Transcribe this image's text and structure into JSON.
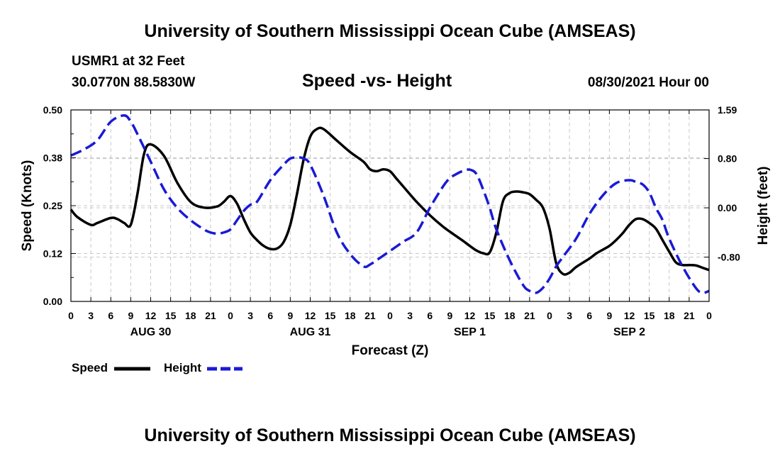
{
  "header": {
    "top_title": "University of Southern Mississippi Ocean Cube (AMSEAS)",
    "station": "USMR1 at 32 Feet",
    "coordinates": "30.0770N  88.5830W",
    "subtitle": "Speed -vs- Height",
    "datetime": "08/30/2021 Hour 00"
  },
  "footer": {
    "bottom_title": "University of Southern Mississippi Ocean Cube (AMSEAS)"
  },
  "legend": {
    "speed_label": "Speed",
    "height_label": "Height"
  },
  "colors": {
    "speed": "#000000",
    "height": "#1a1ad6",
    "grid": "#c8c8c8"
  },
  "chart_data": {
    "type": "line",
    "xlabel": "Forecast (Z)",
    "ylabel_left": "Speed (Knots)",
    "ylabel_right": "Height (feet)",
    "x_unit": "hours from 08/30/2021 00Z",
    "xlim": [
      0,
      96
    ],
    "ylim_left": [
      0.0,
      0.5
    ],
    "ylim_right": [
      -1.52,
      1.59
    ],
    "left_ticks": [
      {
        "value": 0.0,
        "label": "0.00"
      },
      {
        "value": 0.125,
        "label": "0.12"
      },
      {
        "value": 0.25,
        "label": "0.25"
      },
      {
        "value": 0.375,
        "label": "0.38"
      },
      {
        "value": 0.5,
        "label": "0.50"
      }
    ],
    "right_ticks": [
      {
        "value": -0.8,
        "label": "-0.80"
      },
      {
        "value": 0.0,
        "label": "0.00"
      },
      {
        "value": 0.8,
        "label": "0.80"
      },
      {
        "value": 1.59,
        "label": "1.59"
      }
    ],
    "x_ticks": [
      {
        "h": 0,
        "label": "0"
      },
      {
        "h": 3,
        "label": "3"
      },
      {
        "h": 6,
        "label": "6"
      },
      {
        "h": 9,
        "label": "9"
      },
      {
        "h": 12,
        "label": "12"
      },
      {
        "h": 15,
        "label": "15"
      },
      {
        "h": 18,
        "label": "18"
      },
      {
        "h": 21,
        "label": "21"
      },
      {
        "h": 24,
        "label": "0"
      },
      {
        "h": 27,
        "label": "3"
      },
      {
        "h": 30,
        "label": "6"
      },
      {
        "h": 33,
        "label": "9"
      },
      {
        "h": 36,
        "label": "12"
      },
      {
        "h": 39,
        "label": "15"
      },
      {
        "h": 42,
        "label": "18"
      },
      {
        "h": 45,
        "label": "21"
      },
      {
        "h": 48,
        "label": "0"
      },
      {
        "h": 51,
        "label": "3"
      },
      {
        "h": 54,
        "label": "6"
      },
      {
        "h": 57,
        "label": "9"
      },
      {
        "h": 60,
        "label": "12"
      },
      {
        "h": 63,
        "label": "15"
      },
      {
        "h": 66,
        "label": "18"
      },
      {
        "h": 69,
        "label": "21"
      },
      {
        "h": 72,
        "label": "0"
      },
      {
        "h": 75,
        "label": "3"
      },
      {
        "h": 78,
        "label": "6"
      },
      {
        "h": 81,
        "label": "9"
      },
      {
        "h": 84,
        "label": "12"
      },
      {
        "h": 87,
        "label": "15"
      },
      {
        "h": 90,
        "label": "18"
      },
      {
        "h": 93,
        "label": "21"
      },
      {
        "h": 96,
        "label": "0"
      }
    ],
    "date_labels": [
      {
        "h": 12,
        "label": "AUG 30"
      },
      {
        "h": 36,
        "label": "AUG 31"
      },
      {
        "h": 60,
        "label": "SEP 1"
      },
      {
        "h": 84,
        "label": "SEP 2"
      }
    ],
    "series": [
      {
        "name": "Speed",
        "axis": "left",
        "style": "solid",
        "x": [
          0,
          1,
          3,
          4,
          6,
          7,
          8,
          9,
          10,
          11,
          12,
          14,
          16,
          18,
          20,
          22,
          23,
          24,
          25,
          26,
          27,
          28,
          29,
          30,
          31,
          32,
          33,
          34,
          35,
          36,
          37,
          38,
          40,
          42,
          44,
          45,
          46,
          47,
          48,
          49,
          50,
          52,
          54,
          56,
          58,
          59,
          60,
          61,
          62,
          63,
          64,
          65,
          66,
          67,
          68,
          69,
          70,
          71,
          72,
          73,
          74,
          75,
          76,
          78,
          79,
          80,
          81,
          82,
          83,
          84,
          85,
          86,
          87,
          88,
          89,
          90,
          91,
          92,
          93,
          94,
          95,
          96
        ],
        "values": [
          0.24,
          0.22,
          0.2,
          0.205,
          0.218,
          0.215,
          0.205,
          0.2,
          0.28,
          0.385,
          0.41,
          0.38,
          0.31,
          0.26,
          0.245,
          0.248,
          0.26,
          0.275,
          0.255,
          0.215,
          0.18,
          0.16,
          0.145,
          0.137,
          0.138,
          0.155,
          0.2,
          0.28,
          0.37,
          0.43,
          0.45,
          0.45,
          0.42,
          0.39,
          0.365,
          0.345,
          0.34,
          0.345,
          0.34,
          0.32,
          0.3,
          0.26,
          0.225,
          0.195,
          0.17,
          0.158,
          0.145,
          0.133,
          0.126,
          0.128,
          0.18,
          0.262,
          0.283,
          0.287,
          0.285,
          0.28,
          0.265,
          0.245,
          0.19,
          0.1,
          0.072,
          0.075,
          0.09,
          0.112,
          0.125,
          0.135,
          0.145,
          0.16,
          0.178,
          0.2,
          0.215,
          0.215,
          0.205,
          0.19,
          0.16,
          0.13,
          0.102,
          0.095,
          0.095,
          0.094,
          0.088,
          0.082
        ]
      },
      {
        "name": "Height",
        "axis": "right",
        "style": "dashed",
        "x": [
          0,
          2,
          4,
          6,
          8,
          9,
          10,
          12,
          14,
          16,
          18,
          20,
          21,
          22,
          23,
          24,
          25,
          26,
          27,
          28,
          30,
          32,
          33,
          34,
          35,
          36,
          38,
          40,
          42,
          44,
          45,
          46,
          48,
          50,
          52,
          54,
          56,
          57,
          58,
          59,
          60,
          61,
          62,
          63,
          64,
          66,
          68,
          69,
          70,
          71,
          72,
          73,
          74,
          76,
          78,
          80,
          82,
          84,
          85,
          86,
          87,
          88,
          89,
          90,
          92,
          94,
          95,
          96
        ],
        "values": [
          0.85,
          0.95,
          1.1,
          1.4,
          1.5,
          1.4,
          1.2,
          0.75,
          0.3,
          0.0,
          -0.2,
          -0.35,
          -0.4,
          -0.42,
          -0.4,
          -0.35,
          -0.2,
          -0.05,
          0.05,
          0.1,
          0.45,
          0.7,
          0.8,
          0.82,
          0.8,
          0.7,
          0.2,
          -0.4,
          -0.75,
          -0.95,
          -0.92,
          -0.85,
          -0.7,
          -0.55,
          -0.4,
          0.0,
          0.35,
          0.48,
          0.55,
          0.6,
          0.62,
          0.55,
          0.3,
          0.0,
          -0.35,
          -0.85,
          -1.25,
          -1.35,
          -1.38,
          -1.3,
          -1.15,
          -0.95,
          -0.8,
          -0.5,
          -0.1,
          0.2,
          0.4,
          0.45,
          0.42,
          0.38,
          0.25,
          0.0,
          -0.2,
          -0.5,
          -0.95,
          -1.3,
          -1.38,
          -1.35
        ]
      }
    ]
  }
}
